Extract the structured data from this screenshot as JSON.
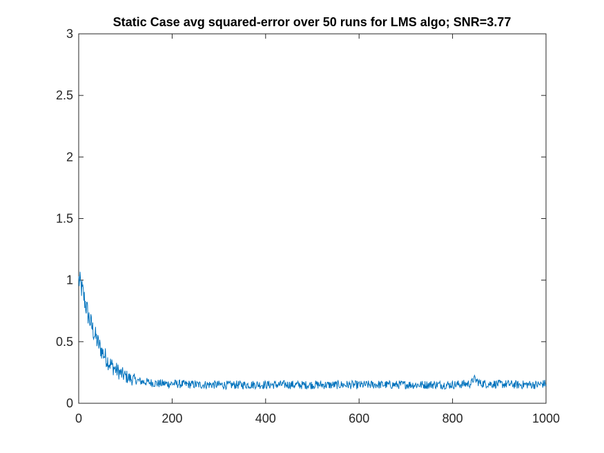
{
  "chart_data": {
    "type": "line",
    "title": "Static Case avg squared-error over 50 runs for LMS algo; SNR=3.77",
    "xlabel": "",
    "ylabel": "",
    "xlim": [
      0,
      1000
    ],
    "ylim": [
      0,
      3
    ],
    "x_ticks": [
      "0",
      "200",
      "400",
      "600",
      "800",
      "1000"
    ],
    "y_ticks": [
      "0",
      "0.5",
      "1",
      "1.5",
      "2",
      "2.5",
      "3"
    ],
    "grid": false,
    "legend": "none",
    "line_color": "#0072BD",
    "series": [
      {
        "x": [
          0,
          5,
          10,
          15,
          20,
          25,
          30,
          35,
          40,
          45,
          50,
          55,
          60,
          65,
          70,
          75,
          80,
          85,
          90,
          95,
          100,
          110,
          120,
          130,
          140,
          150,
          160,
          170,
          180,
          190,
          200,
          220,
          240,
          260,
          280,
          300,
          320,
          340,
          360,
          380,
          400,
          420,
          440,
          460,
          480,
          500,
          520,
          540,
          560,
          580,
          600,
          620,
          640,
          660,
          680,
          700,
          720,
          740,
          760,
          780,
          800,
          820,
          840,
          845,
          860,
          880,
          900,
          920,
          940,
          960,
          980,
          1000
        ],
        "y": [
          1.0,
          0.95,
          0.88,
          0.8,
          0.72,
          0.66,
          0.6,
          0.55,
          0.5,
          0.46,
          0.42,
          0.39,
          0.36,
          0.33,
          0.31,
          0.29,
          0.27,
          0.26,
          0.24,
          0.23,
          0.22,
          0.2,
          0.19,
          0.18,
          0.175,
          0.17,
          0.165,
          0.16,
          0.16,
          0.158,
          0.16,
          0.155,
          0.153,
          0.15,
          0.152,
          0.15,
          0.148,
          0.15,
          0.15,
          0.152,
          0.15,
          0.15,
          0.152,
          0.15,
          0.148,
          0.15,
          0.15,
          0.148,
          0.15,
          0.15,
          0.148,
          0.15,
          0.152,
          0.15,
          0.15,
          0.152,
          0.15,
          0.15,
          0.152,
          0.15,
          0.15,
          0.155,
          0.16,
          0.2,
          0.16,
          0.158,
          0.155,
          0.155,
          0.15,
          0.152,
          0.15,
          0.16
        ]
      }
    ]
  }
}
